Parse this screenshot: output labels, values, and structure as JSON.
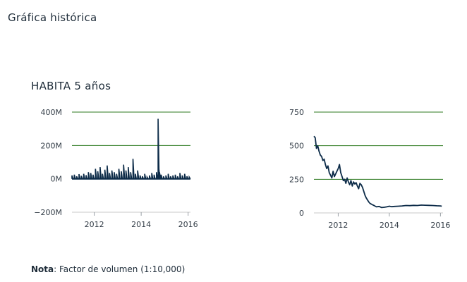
{
  "page_title": "Gráfica histórica",
  "chart_title": "HABITA 5 años",
  "footnote": {
    "label": "Nota",
    "text": ": Factor de volumen (1:10,000)"
  },
  "colors": {
    "series": "#0c2b48",
    "gridline": "#2d7a1f",
    "axis_text": "#333d47"
  },
  "chart_data": [
    {
      "type": "area",
      "title": "",
      "xlabel": "",
      "ylabel": "",
      "grid": true,
      "xlim": [
        2011.05,
        2016.1
      ],
      "ylim": [
        -200,
        400
      ],
      "y_ticks": [
        -200,
        0,
        200,
        400
      ],
      "y_tick_labels": [
        "−200M",
        "0M",
        "200M",
        "400M"
      ],
      "gridline_values": [
        0,
        200,
        400
      ],
      "x_ticks": [
        2012,
        2014,
        2016
      ],
      "x_tick_labels": [
        "2012",
        "2014",
        "2016"
      ],
      "series": [
        {
          "x": [
            2011.05,
            2011.15,
            2011.25,
            2011.35,
            2011.45,
            2011.55,
            2011.65,
            2011.75,
            2011.85,
            2011.95,
            2012.05,
            2012.15,
            2012.25,
            2012.35,
            2012.45,
            2012.55,
            2012.65,
            2012.75,
            2012.85,
            2012.95,
            2013.05,
            2013.15,
            2013.25,
            2013.35,
            2013.45,
            2013.55,
            2013.65,
            2013.75,
            2013.85,
            2013.95,
            2014.05,
            2014.15,
            2014.25,
            2014.35,
            2014.45,
            2014.55,
            2014.65,
            2014.72,
            2014.75,
            2014.78,
            2014.85,
            2014.95,
            2015.05,
            2015.15,
            2015.25,
            2015.35,
            2015.45,
            2015.55,
            2015.65,
            2015.75,
            2015.85,
            2015.95,
            2016.05
          ],
          "values": [
            20,
            25,
            15,
            28,
            18,
            30,
            22,
            40,
            35,
            25,
            60,
            45,
            70,
            30,
            55,
            80,
            35,
            50,
            40,
            30,
            60,
            45,
            85,
            50,
            70,
            40,
            120,
            30,
            50,
            20,
            15,
            30,
            10,
            20,
            35,
            25,
            40,
            360,
            70,
            40,
            25,
            15,
            20,
            30,
            15,
            20,
            25,
            15,
            35,
            20,
            30,
            15,
            10
          ]
        }
      ]
    },
    {
      "type": "line",
      "title": "",
      "xlabel": "",
      "ylabel": "",
      "grid": true,
      "xlim": [
        2011.05,
        2016.1
      ],
      "ylim": [
        0,
        750
      ],
      "y_ticks": [
        0,
        250,
        500,
        750
      ],
      "y_tick_labels": [
        "0",
        "250",
        "500",
        "750"
      ],
      "gridline_values": [
        250,
        500,
        750
      ],
      "x_ticks": [
        2012,
        2014,
        2016
      ],
      "x_tick_labels": [
        "2012",
        "2014",
        "2016"
      ],
      "series": [
        {
          "x": [
            2011.05,
            2011.1,
            2011.15,
            2011.2,
            2011.25,
            2011.3,
            2011.35,
            2011.4,
            2011.45,
            2011.5,
            2011.55,
            2011.6,
            2011.65,
            2011.7,
            2011.75,
            2011.8,
            2011.85,
            2011.9,
            2011.95,
            2012.0,
            2012.05,
            2012.1,
            2012.15,
            2012.2,
            2012.25,
            2012.3,
            2012.35,
            2012.4,
            2012.45,
            2012.5,
            2012.55,
            2012.6,
            2012.65,
            2012.7,
            2012.75,
            2012.8,
            2012.85,
            2012.9,
            2012.95,
            2013.0,
            2013.05,
            2013.1,
            2013.15,
            2013.2,
            2013.25,
            2013.3,
            2013.35,
            2013.4,
            2013.45,
            2013.5,
            2013.6,
            2013.7,
            2013.8,
            2013.9,
            2014.0,
            2014.1,
            2014.2,
            2014.35,
            2014.5,
            2014.65,
            2014.8,
            2014.95,
            2015.1,
            2015.25,
            2015.4,
            2015.55,
            2015.7,
            2015.85,
            2016.0,
            2016.05
          ],
          "values": [
            570,
            560,
            480,
            500,
            460,
            430,
            420,
            390,
            400,
            360,
            330,
            350,
            300,
            280,
            260,
            310,
            270,
            290,
            310,
            330,
            360,
            300,
            270,
            240,
            250,
            220,
            260,
            230,
            210,
            240,
            200,
            230,
            215,
            225,
            200,
            180,
            220,
            210,
            190,
            160,
            130,
            110,
            95,
            80,
            70,
            65,
            60,
            55,
            50,
            45,
            48,
            40,
            42,
            45,
            50,
            46,
            48,
            50,
            52,
            55,
            54,
            56,
            55,
            58,
            57,
            56,
            55,
            53,
            52,
            50
          ]
        }
      ]
    }
  ]
}
